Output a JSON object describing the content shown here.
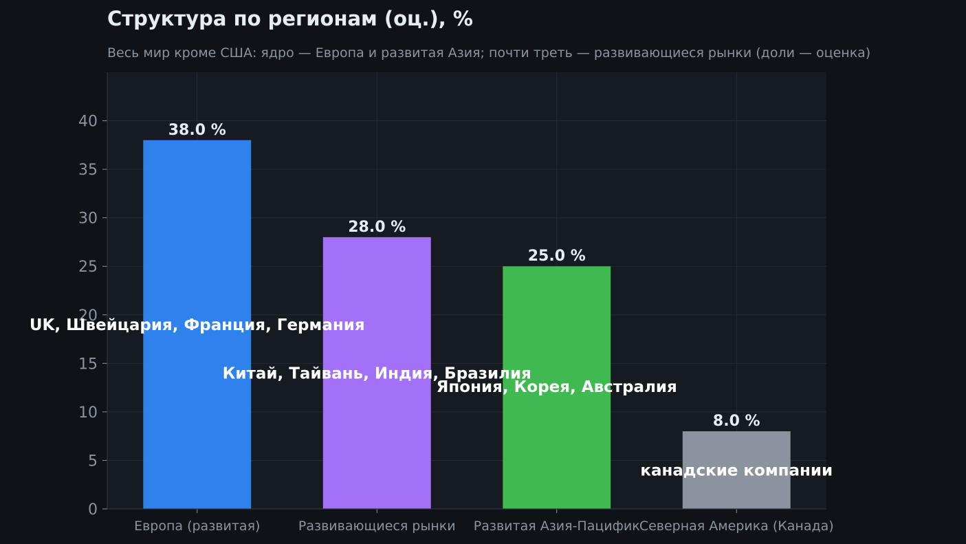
{
  "chart_data": {
    "type": "bar",
    "title": "Структура по регионам (оц.), %",
    "subtitle": "Весь мир кроме США: ядро — Европа и развитая Азия; почти треть — развивающиеся рынки (доли — оценка)",
    "xlabel": "",
    "ylabel": "",
    "categories": [
      "Европа (развитая)",
      "Развивающиеся рынки",
      "Развитая Азия-Пацифик",
      "Северная Америка (Канада)"
    ],
    "values": [
      38.0,
      28.0,
      25.0,
      8.0
    ],
    "value_labels": [
      "38.0 %",
      "28.0 %",
      "25.0 %",
      "8.0 %"
    ],
    "annotations": [
      "UK, Швейцария, Франция, Германия",
      "Китай, Тайвань, Индия, Бразилия",
      "Япония, Корея, Австралия",
      "канадские компании"
    ],
    "annotation_y": [
      19,
      14,
      12.6,
      4
    ],
    "colors": [
      "#2f81eb",
      "#a371f7",
      "#3fb950",
      "#8b949e"
    ],
    "ylim": [
      0,
      45
    ],
    "yticks": [
      0,
      5,
      10,
      15,
      20,
      25,
      30,
      35,
      40
    ],
    "grid": true
  }
}
